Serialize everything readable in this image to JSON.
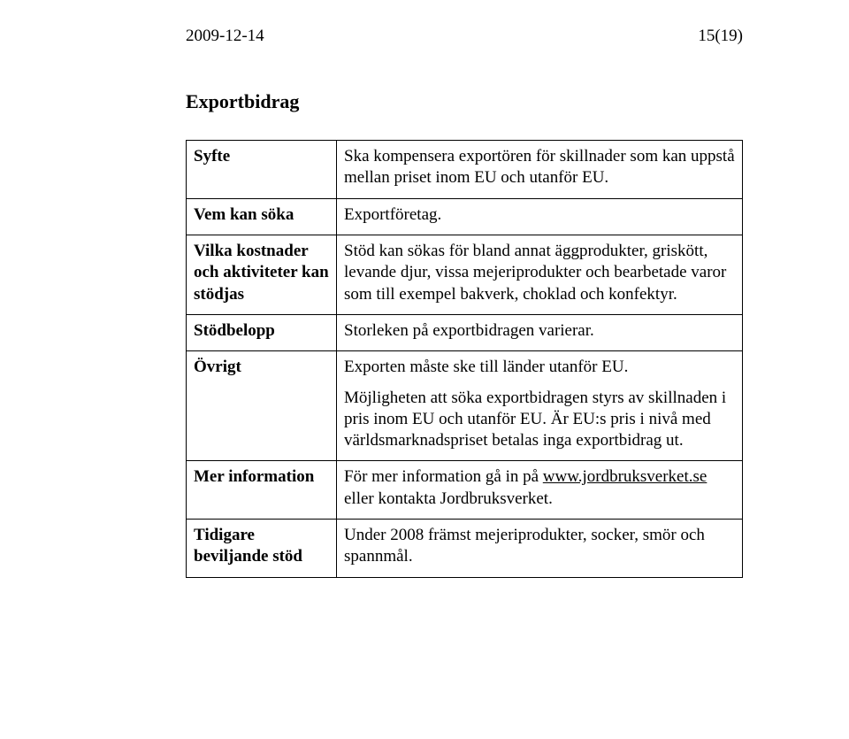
{
  "header": {
    "date": "2009-12-14",
    "page_number": "15(19)"
  },
  "section_title": "Exportbidrag",
  "rows": [
    {
      "label": "Syfte",
      "values": [
        "Ska kompensera exportören för skillnader som kan uppstå mellan priset inom EU och utanför EU."
      ]
    },
    {
      "label": "Vem kan söka",
      "values": [
        "Exportföretag."
      ]
    },
    {
      "label": "Vilka kostnader och aktiviteter kan stödjas",
      "values": [
        "Stöd kan sökas för bland annat äggprodukter, griskött, levande djur, vissa mejeriprodukter och bearbetade varor som till exempel bakverk, choklad och konfektyr."
      ]
    },
    {
      "label": "Stödbelopp",
      "values": [
        "Storleken på exportbidragen varierar."
      ]
    },
    {
      "label": "Övrigt",
      "values": [
        "Exporten måste ske till länder utanför EU.",
        "Möjligheten att söka exportbidragen styrs av skillnaden i pris inom EU och utanför EU. Är EU:s pris i nivå med världsmarknadspriset betalas inga exportbidrag ut."
      ]
    },
    {
      "label": "Mer information",
      "link_row": true,
      "pre_text": "För mer information gå in på ",
      "link_text": "www.jordbruksverket.se",
      "post_text": " eller kontakta Jordbruksverket."
    },
    {
      "label": "Tidigare beviljande stöd",
      "values": [
        "Under 2008 främst mejeriprodukter, socker, smör och spannmål."
      ]
    }
  ],
  "colors": {
    "text": "#000000",
    "background": "#ffffff",
    "border": "#000000"
  },
  "typography": {
    "body_fontsize_pt": 14,
    "title_fontsize_pt": 16,
    "font_family": "Times New Roman"
  }
}
